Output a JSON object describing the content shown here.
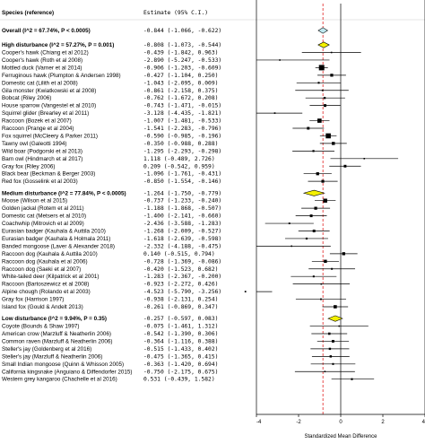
{
  "chart_data": {
    "type": "forest",
    "header": {
      "study_column": "Species (reference)",
      "estimate_column": "Estimate (95% C.I.)"
    },
    "xlabel": "Standardized Mean Difference",
    "xlim": [
      -4,
      4
    ],
    "ticks": [
      {
        "value": -4,
        "label": "-4"
      },
      {
        "value": -2,
        "label": "-2"
      },
      {
        "value": 0,
        "label": "0"
      },
      {
        "value": 2,
        "label": "2"
      },
      {
        "value": 4,
        "label": "4"
      }
    ],
    "reference_lines": [
      {
        "value": 0,
        "style": "solid",
        "color": "#222222"
      },
      {
        "value": -0.844,
        "style": "dashed",
        "color": "#e02020"
      }
    ],
    "overall": {
      "label": "Overall (I^2 = 67.74%, P < 0.0005)",
      "estimate": "-0.844 (-1.066, -0.622)",
      "value": -0.844,
      "lower": -1.066,
      "upper": -0.622,
      "color": "#bfe8f0"
    },
    "groups": [
      {
        "label": "High disturbance (I^2 = 57.27%, P = 0.001)",
        "estimate": "-0.808 (-1.073, -0.544)",
        "value": -0.808,
        "lower": -1.073,
        "upper": -0.544,
        "color": "#f4f000",
        "studies": [
          {
            "label": "Cooper's hawk (Chiang et al 2012)",
            "estimate": "-0.439 (-1.842, 0.963)",
            "value": -0.439,
            "lower": -1.842,
            "upper": 0.963
          },
          {
            "label": "Cooper's hawk (Roth et al 2008)",
            "estimate": "-2.890 (-5.247, -0.533)",
            "value": -2.89,
            "lower": -5.247,
            "upper": -0.533
          },
          {
            "label": "Mottled duck (Varner et al 2014)",
            "estimate": "-0.906 (-1.203, -0.609)",
            "value": -0.906,
            "lower": -1.203,
            "upper": -0.609
          },
          {
            "label": "Ferruginous hawk (Plumpton & Andersen 1998)",
            "estimate": "-0.427 (-1.104, 0.250)",
            "value": -0.427,
            "lower": -1.104,
            "upper": 0.25
          },
          {
            "label": "Domestic cat (Lilith et al 2008)",
            "estimate": "-1.043 (-2.095, 0.009)",
            "value": -1.043,
            "lower": -2.095,
            "upper": 0.009
          },
          {
            "label": "Gila monster (Kwiatkowski et al 2008)",
            "estimate": "-0.861 (-2.158, 0.375)",
            "value": -0.861,
            "lower": -2.158,
            "upper": 0.375
          },
          {
            "label": "Bobcat (Riley 2006)",
            "estimate": "-0.762 (-1.672, 0.208)",
            "value": -0.762,
            "lower": -1.672,
            "upper": 0.208
          },
          {
            "label": "House sparrow (Vangestel et al 2010)",
            "estimate": "-0.743 (-1.471, -0.015)",
            "value": -0.743,
            "lower": -1.471,
            "upper": -0.015
          },
          {
            "label": "Squirrel glider (Brearley et al 2011)",
            "estimate": "-3.128 (-4.435, -1.821)",
            "value": -3.128,
            "lower": -4.435,
            "upper": -1.821
          },
          {
            "label": "Raccoon (Bozek et al 2007)",
            "estimate": "-1.007 (-1.481, -0.533)",
            "value": -1.007,
            "lower": -1.481,
            "upper": -0.533
          },
          {
            "label": "Raccoon (Prange et al 2004)",
            "estimate": "-1.541 (-2.283, -0.796)",
            "value": -1.541,
            "lower": -2.283,
            "upper": -0.796
          },
          {
            "label": "Fox squirrel (McCleery & Parker 2011)",
            "estimate": "-0.590 (-0.985, -0.196)",
            "value": -0.59,
            "lower": -0.985,
            "upper": -0.196
          },
          {
            "label": "Tawny owl (Galeotti 1994)",
            "estimate": "-0.350 (-0.988, 0.288)",
            "value": -0.35,
            "lower": -0.988,
            "upper": 0.288
          },
          {
            "label": "Wild boar (Podgorski et al 2013)",
            "estimate": "-1.295 (-2.293, -0.298)",
            "value": -1.295,
            "lower": -2.293,
            "upper": -0.298
          },
          {
            "label": "Barn owl (Hindmarch et al 2017)",
            "estimate": "1.118 (-0.489, 2.726)",
            "value": 1.118,
            "lower": -0.489,
            "upper": 2.726
          },
          {
            "label": "Gray fox (Riley 2006)",
            "estimate": "0.209 (-0.542, 0.959)",
            "value": 0.209,
            "lower": -0.542,
            "upper": 0.959
          },
          {
            "label": "Black bear (Beckman & Berger 2003)",
            "estimate": "-1.096 (-1.761, -0.431)",
            "value": -1.096,
            "lower": -1.761,
            "upper": -0.431
          },
          {
            "label": "Red fox (Gosselink et al 2003)",
            "estimate": "-0.850 (-1.554, -0.146)",
            "value": -0.85,
            "lower": -1.554,
            "upper": -0.146
          }
        ]
      },
      {
        "label": "Medium disturbance (I^2 = 77.84%, P < 0.0005)",
        "estimate": "-1.264 (-1.750, -0.779)",
        "value": -1.264,
        "lower": -1.75,
        "upper": -0.779,
        "color": "#f4f000",
        "studies": [
          {
            "label": "Moose (Wilson et al 2015)",
            "estimate": "-0.737 (-1.233, -0.240)",
            "value": -0.737,
            "lower": -1.233,
            "upper": -0.24
          },
          {
            "label": "Golden jackal (Rotem et al 2011)",
            "estimate": "-1.188 (-1.868, -0.507)",
            "value": -1.188,
            "lower": -1.868,
            "upper": -0.507
          },
          {
            "label": "Domestic cat (Metsers et al 2010)",
            "estimate": "-1.400 (-2.141, -0.660)",
            "value": -1.4,
            "lower": -2.141,
            "upper": -0.66
          },
          {
            "label": "Coachwhip (Mitrovich et al 2009)",
            "estimate": "-2.436 (-3.588, -1.283)",
            "value": -2.436,
            "lower": -3.588,
            "upper": -1.283
          },
          {
            "label": "Eurasian badger (Kauhala & Auttila 2010)",
            "estimate": "-1.268 (-2.009, -0.527)",
            "value": -1.268,
            "lower": -2.009,
            "upper": -0.527
          },
          {
            "label": "Eurasian badger (Kauhala & Holmala 2011)",
            "estimate": "-1.618 (-2.639, -0.598)",
            "value": -1.618,
            "lower": -2.639,
            "upper": -0.598
          },
          {
            "label": "Banded mongoose (Laver & Alexander 2018)",
            "estimate": "-2.332 (-4.188, -0.475)",
            "value": -2.332,
            "lower": -4.188,
            "upper": -0.475
          },
          {
            "label": "Raccoon dog (Kauhala & Auttila 2010)",
            "estimate": "0.140 (-0.515, 0.794)",
            "value": 0.14,
            "lower": -0.515,
            "upper": 0.794
          },
          {
            "label": "Raccoon dog (Kauhala et al 2006)",
            "estimate": "-0.728 (-1.369, -0.086)",
            "value": -0.728,
            "lower": -1.369,
            "upper": -0.086
          },
          {
            "label": "Raccoon dog (Saeki et al 2007)",
            "estimate": "-0.420 (-1.523, 0.682)",
            "value": -0.42,
            "lower": -1.523,
            "upper": 0.682
          },
          {
            "label": "White-tailed deer (Kilpatrick et al 2001)",
            "estimate": "-1.283 (-2.367, -0.200)",
            "value": -1.283,
            "lower": -2.367,
            "upper": -0.2
          },
          {
            "label": "Raccoon (Bartoszewicz et al 2008)",
            "estimate": "-0.923 (-2.272, 0.426)",
            "value": -0.923,
            "lower": -2.272,
            "upper": 0.426
          },
          {
            "label": "Alpine chough (Rolando et al 2003)",
            "estimate": "-4.523 (-5.790, -3.256)",
            "value": -4.523,
            "lower": -5.79,
            "upper": -3.256
          },
          {
            "label": "Gray fox (Harrison 1997)",
            "estimate": "-0.938 (-2.131, 0.254)",
            "value": -0.938,
            "lower": -2.131,
            "upper": 0.254
          },
          {
            "label": "Island fox (Gould & Andelt 2013)",
            "estimate": "-0.261 (-0.869, 0.347)",
            "value": -0.261,
            "lower": -0.869,
            "upper": 0.347
          }
        ]
      },
      {
        "label": "Low disturbance (I^2 = 9.94%, P = 0.35)",
        "estimate": "-0.257 (-0.597, 0.083)",
        "value": -0.257,
        "lower": -0.597,
        "upper": 0.083,
        "color": "#f4f000",
        "studies": [
          {
            "label": "Coyote (Bounds & Shaw 1997)",
            "estimate": "-0.075 (-1.461, 1.312)",
            "value": -0.075,
            "lower": -1.461,
            "upper": 1.312
          },
          {
            "label": "American crow (Marzluff & Neatherlin 2006)",
            "estimate": "-0.542 (-1.390, 0.306)",
            "value": -0.542,
            "lower": -1.39,
            "upper": 0.306
          },
          {
            "label": "Common raven (Marzluff & Neatherlin 2006)",
            "estimate": "-0.364 (-1.116, 0.388)",
            "value": -0.364,
            "lower": -1.116,
            "upper": 0.388
          },
          {
            "label": "Steller's jay (Goldenberg et al 2016)",
            "estimate": "-0.515 (-1.433, 0.402)",
            "value": -0.515,
            "lower": -1.433,
            "upper": 0.402
          },
          {
            "label": "Steller's jay (Marzluff & Neatherlin 2006)",
            "estimate": "-0.475 (-1.365, 0.415)",
            "value": -0.475,
            "lower": -1.365,
            "upper": 0.415
          },
          {
            "label": "Small Indian mongoose (Quinn & Whisson 2005)",
            "estimate": "-0.363 (-1.420, 0.694)",
            "value": -0.363,
            "lower": -1.42,
            "upper": 0.694
          },
          {
            "label": "California kingsnake (Anguiano & Diffendorfer 2015)",
            "estimate": "-0.750 (-2.175, 0.675)",
            "value": -0.75,
            "lower": -2.175,
            "upper": 0.675
          },
          {
            "label": "Western grey kangaroo (Chachelle et al 2016)",
            "estimate": "0.531 (-0.439, 1.582)",
            "value": 0.531,
            "lower": -0.439,
            "upper": 1.582
          }
        ]
      }
    ]
  }
}
